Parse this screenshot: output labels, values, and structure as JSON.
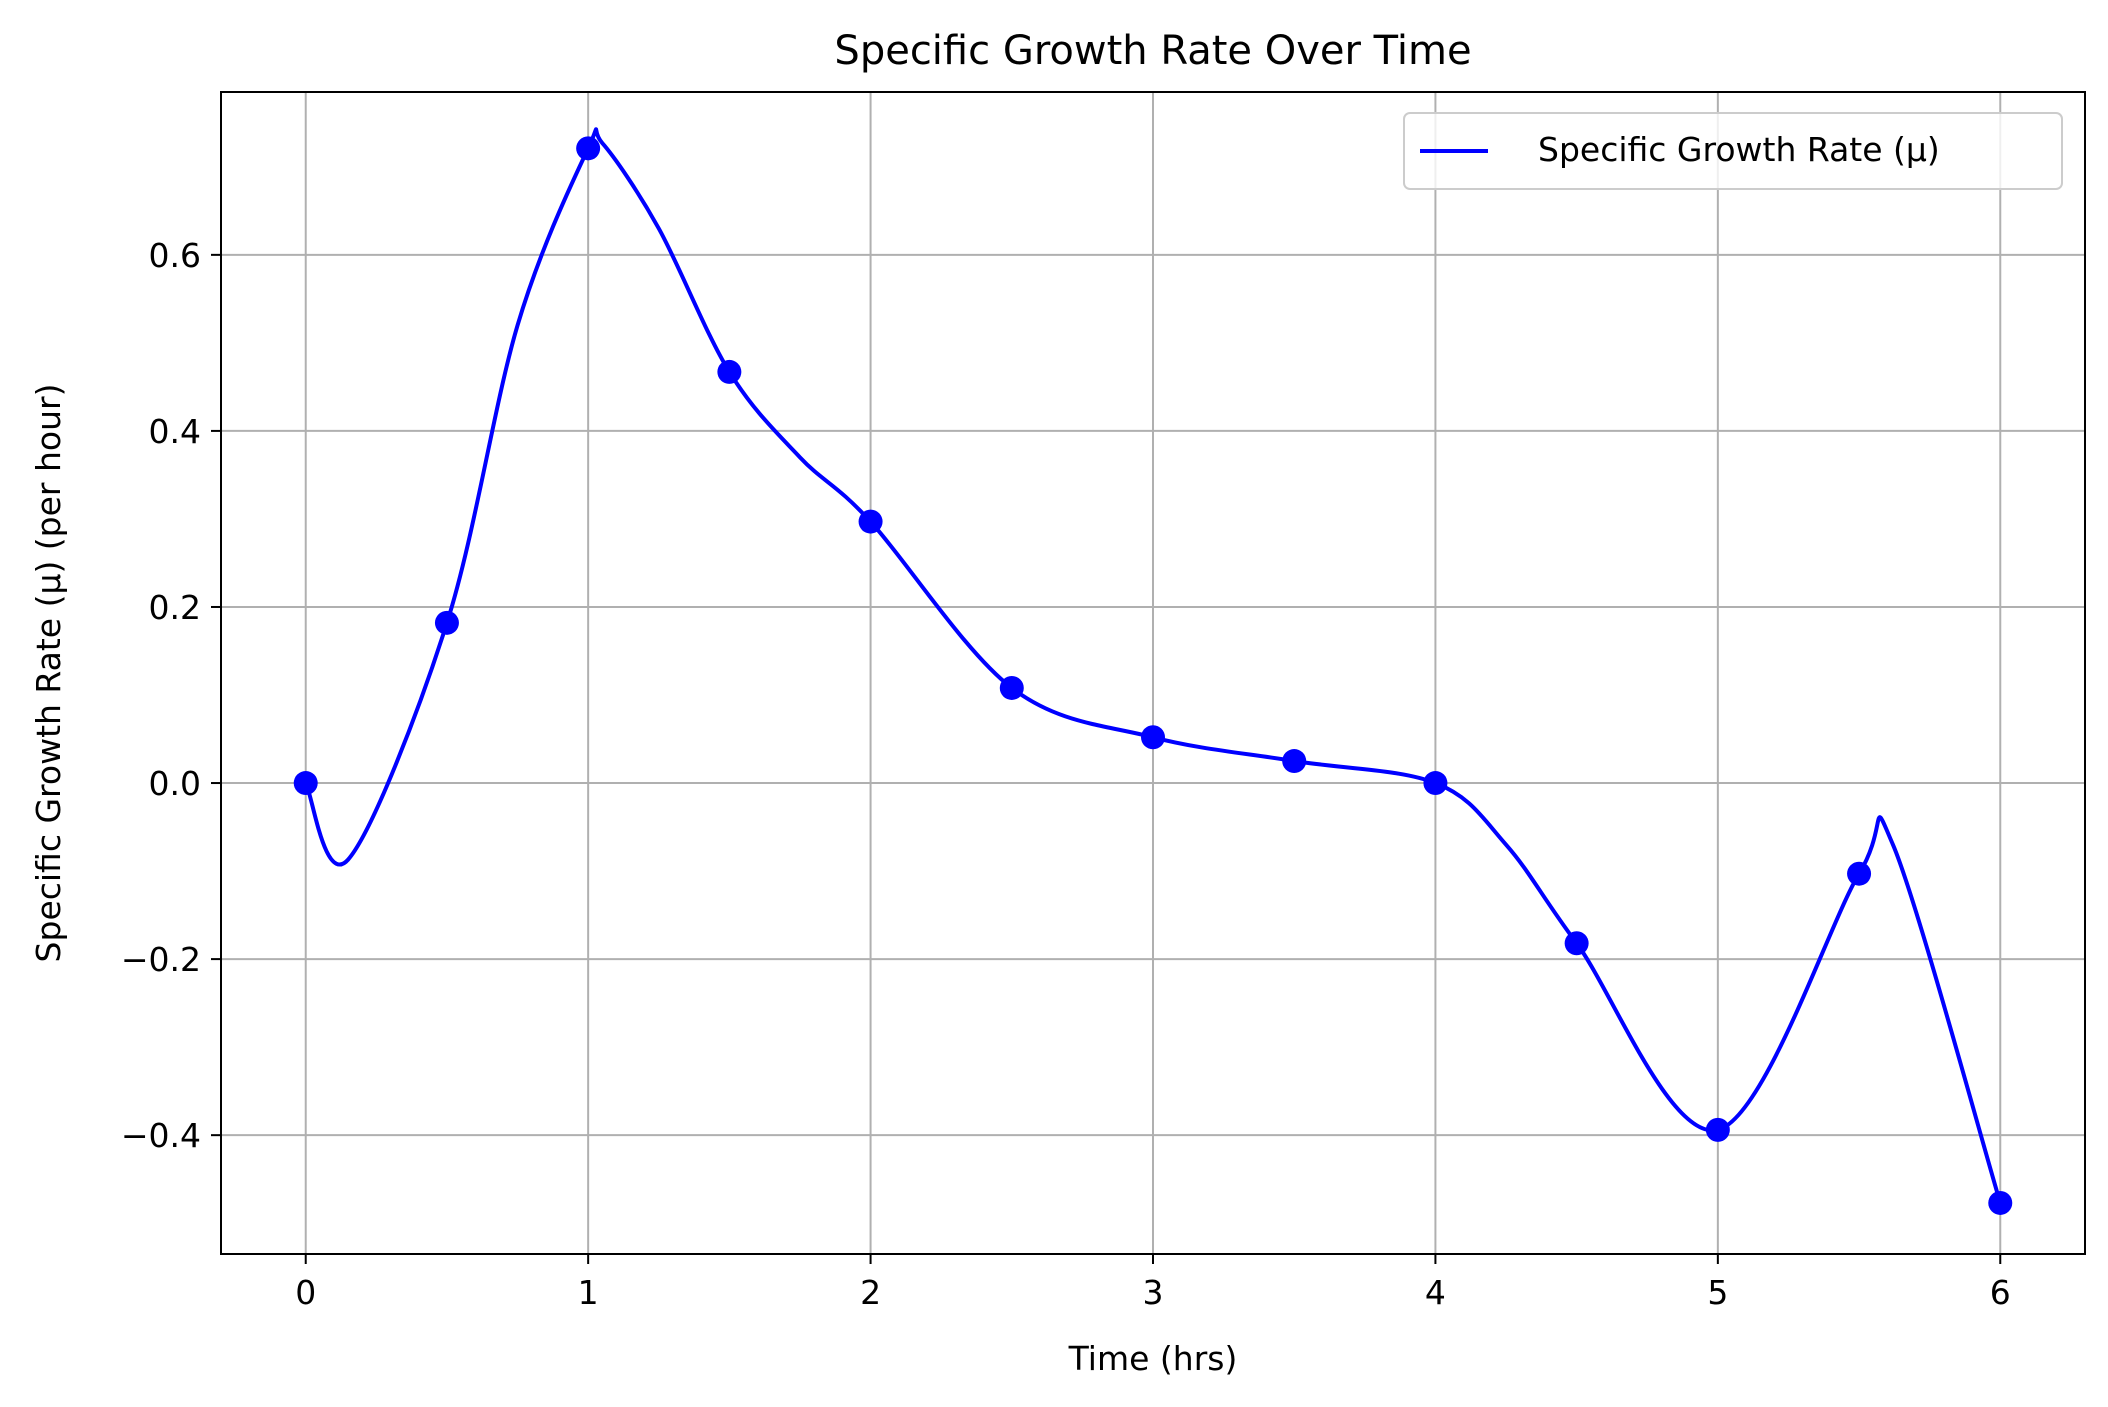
{
  "chart_data": {
    "type": "line",
    "title": "Specific Growth Rate Over Time",
    "xlabel": "Time (hrs)",
    "ylabel": "Specific Growth Rate (μ) (per hour)",
    "xlim": [
      -0.3,
      6.3
    ],
    "ylim": [
      -0.535,
      0.785
    ],
    "xticks": [
      0,
      1,
      2,
      3,
      4,
      5,
      6
    ],
    "xtick_labels": [
      "0",
      "1",
      "2",
      "3",
      "4",
      "5",
      "6"
    ],
    "yticks": [
      -0.4,
      -0.2,
      0.0,
      0.2,
      0.4,
      0.6
    ],
    "ytick_labels": [
      "−0.4",
      "−0.2",
      "0.0",
      "0.2",
      "0.4",
      "0.6"
    ],
    "grid": true,
    "legend_position": "top-right",
    "series": [
      {
        "name": "Specific Growth Rate (μ)",
        "color": "#0000ff",
        "x": [
          0,
          0.5,
          1,
          1.5,
          2,
          2.5,
          3,
          3.5,
          4,
          4.5,
          5,
          5.5,
          6
        ],
        "y": [
          0.0,
          0.182,
          0.721,
          0.467,
          0.297,
          0.108,
          0.052,
          0.025,
          0.0,
          -0.182,
          -0.394,
          -0.103,
          -0.477
        ],
        "curve_x": [
          0,
          0.15,
          0.5,
          0.75,
          1,
          1.05,
          1.25,
          1.5,
          1.75,
          2,
          2.5,
          3,
          3.5,
          4,
          4.25,
          4.5,
          5,
          5.5,
          5.62,
          6
        ],
        "curve_y": [
          0.0,
          -0.087,
          0.182,
          0.52,
          0.721,
          0.727,
          0.63,
          0.467,
          0.37,
          0.297,
          0.108,
          0.052,
          0.025,
          0.0,
          -0.07,
          -0.182,
          -0.394,
          -0.103,
          -0.07,
          -0.477
        ]
      }
    ]
  }
}
